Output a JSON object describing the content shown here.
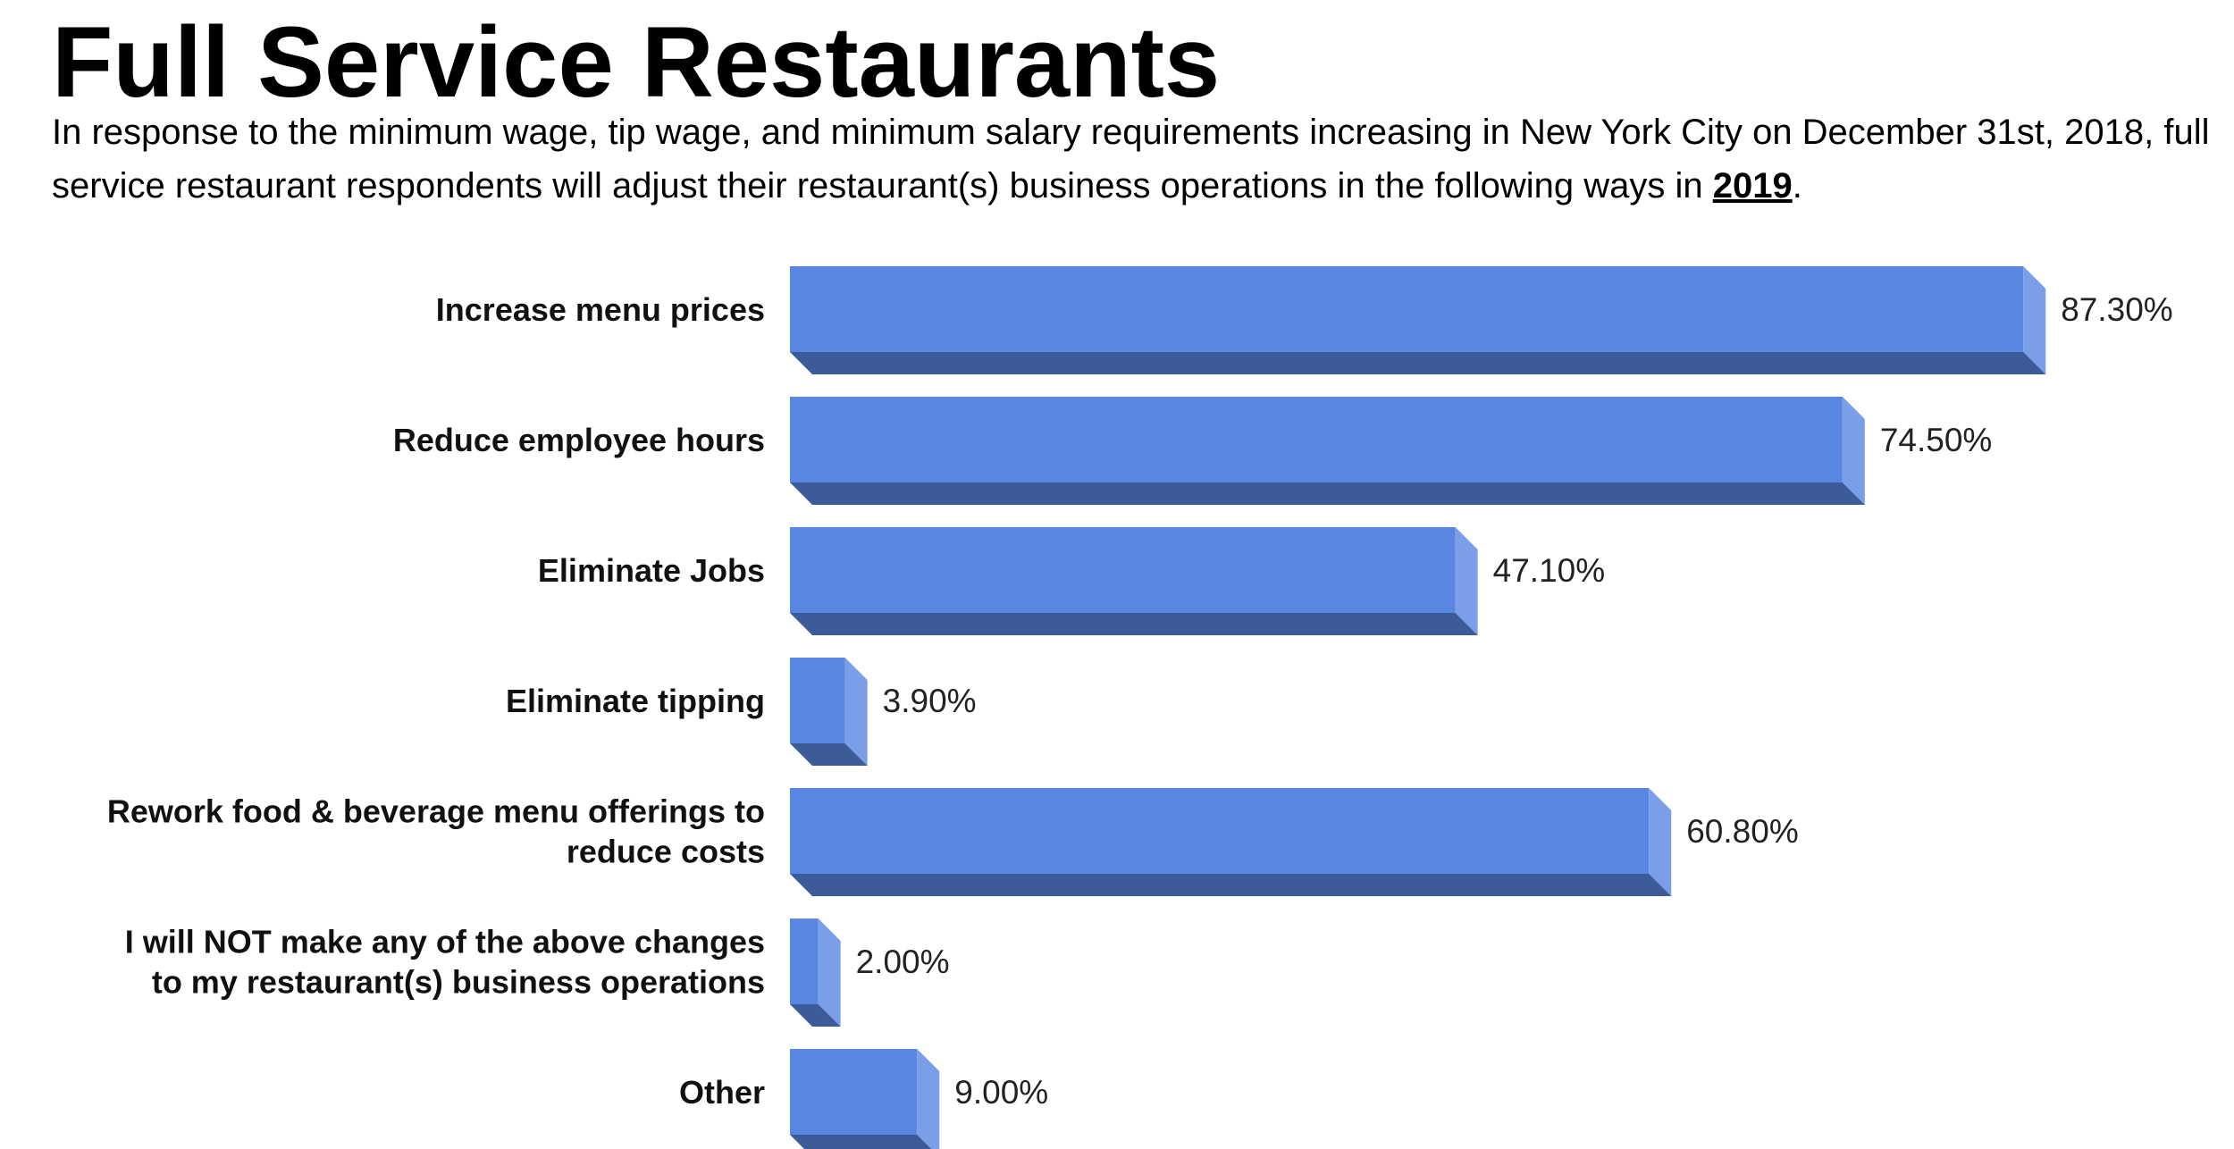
{
  "header": {
    "title": "Full Service Restaurants",
    "subtitle_pre": "In response to the minimum wage, tip wage, and minimum salary requirements increasing in New York City on December 31st, 2018, full service restaurant respondents will adjust their restaurant(s) business operations in the following ways in ",
    "subtitle_year": "2019",
    "subtitle_post": "."
  },
  "colors": {
    "bar_front": "#5886e0",
    "bar_side": "#7b9ee9",
    "bar_bottom": "#3d5a99"
  },
  "chart_data": {
    "type": "bar",
    "orientation": "horizontal",
    "title": "",
    "xlabel": "",
    "ylabel": "",
    "xlim": [
      0,
      100
    ],
    "grid": false,
    "legend": "none",
    "categories": [
      [
        "Increase menu prices"
      ],
      [
        "Reduce employee hours"
      ],
      [
        "Eliminate Jobs"
      ],
      [
        "Eliminate tipping"
      ],
      [
        "Rework food & beverage menu offerings to",
        "reduce costs"
      ],
      [
        "I will NOT make any of the above changes",
        "to my restaurant(s) business operations"
      ],
      [
        "Other"
      ]
    ],
    "values": [
      87.3,
      74.5,
      47.1,
      3.9,
      60.8,
      2.0,
      9.0
    ],
    "value_labels": [
      "87.30%",
      "74.50%",
      "47.10%",
      "3.90%",
      "60.80%",
      "2.00%",
      "9.00%"
    ]
  }
}
